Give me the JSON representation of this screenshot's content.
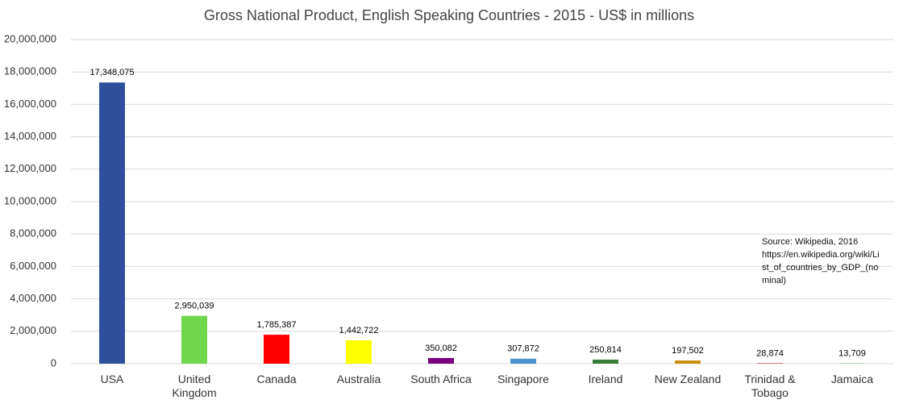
{
  "chart_data": {
    "type": "bar",
    "title": "Gross National Product, English Speaking Countries - 2015 - US$ in millions",
    "categories": [
      "USA",
      "United Kingdom",
      "Canada",
      "Australia",
      "South Africa",
      "Singapore",
      "Ireland",
      "New Zealand",
      "Trinidad & Tobago",
      "Jamaica"
    ],
    "values": [
      17348075,
      2950039,
      1785387,
      1442722,
      350082,
      307872,
      250814,
      197502,
      28874,
      13709
    ],
    "value_labels": [
      "17,348,075",
      "2,950,039",
      "1,785,387",
      "1,442,722",
      "350,082",
      "307,872",
      "250,814",
      "197,502",
      "28,874",
      "13,709"
    ],
    "colors": [
      "#2e4f9b",
      "#6fd84a",
      "#ff0000",
      "#ffff00",
      "#7a0080",
      "#4e90d0",
      "#3a7d3a",
      "#c8900e",
      "#b03030",
      "#3aa03a"
    ],
    "ylim": [
      0,
      20000000
    ],
    "yticks": [
      0,
      {
        "value": 2000000,
        "label": "2,000,000"
      },
      {
        "value": 4000000,
        "label": "4,000,000"
      },
      {
        "value": 6000000,
        "label": "6,000,000"
      },
      {
        "value": 8000000,
        "label": "8,000,000"
      },
      {
        "value": 10000000,
        "label": "10,000,000"
      },
      {
        "value": 12000000,
        "label": "12,000,000"
      },
      {
        "value": 14000000,
        "label": "14,000,000"
      },
      {
        "value": 16000000,
        "label": "16,000,000"
      },
      {
        "value": 18000000,
        "label": "18,000,000"
      },
      {
        "value": 20000000,
        "label": "20,000,000"
      }
    ],
    "grid": true,
    "annotation": "Source: Wikipedia, 2016 https://en.wikipedia.org/wiki/List_of_countries_by_GDP_(nominal)"
  }
}
